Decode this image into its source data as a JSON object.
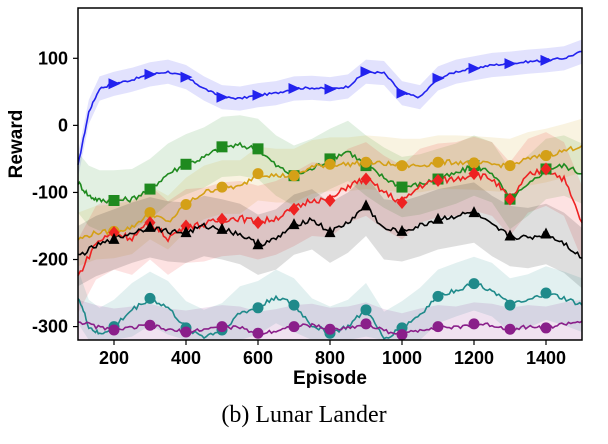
{
  "caption": "(b) Lunar Lander",
  "chart_data": {
    "type": "line",
    "title": "",
    "xlabel": "Episode",
    "ylabel": "Reward",
    "xlim": [
      100,
      1500
    ],
    "ylim": [
      -320,
      175
    ],
    "xticks": [
      200,
      400,
      600,
      800,
      1000,
      1200,
      1400
    ],
    "yticks": [
      100,
      0,
      -100,
      -200,
      -300
    ],
    "grid": false,
    "series": [
      {
        "color": "#2222ee",
        "marker": "triangle-right",
        "x": [
          100,
          130,
          160,
          200,
          250,
          300,
          350,
          400,
          450,
          500,
          550,
          600,
          650,
          700,
          750,
          800,
          850,
          900,
          950,
          1000,
          1050,
          1100,
          1150,
          1200,
          1250,
          1300,
          1350,
          1400,
          1450,
          1500
        ],
        "y": [
          -60,
          20,
          55,
          62,
          68,
          76,
          80,
          72,
          55,
          42,
          40,
          45,
          48,
          55,
          56,
          54,
          58,
          80,
          78,
          48,
          42,
          70,
          80,
          85,
          90,
          92,
          95,
          97,
          100,
          110
        ],
        "band": 18
      },
      {
        "color": "#1f8a1f",
        "marker": "square",
        "x": [
          100,
          130,
          160,
          200,
          250,
          300,
          350,
          400,
          450,
          500,
          550,
          600,
          650,
          700,
          750,
          800,
          850,
          900,
          950,
          1000,
          1050,
          1100,
          1150,
          1200,
          1250,
          1300,
          1350,
          1400,
          1450,
          1500
        ],
        "y": [
          -85,
          -105,
          -112,
          -112,
          -110,
          -95,
          -72,
          -58,
          -48,
          -32,
          -30,
          -35,
          -60,
          -75,
          -65,
          -50,
          -38,
          -60,
          -78,
          -92,
          -88,
          -80,
          -72,
          -60,
          -70,
          -110,
          -90,
          -65,
          -60,
          -72
        ],
        "band": 45
      },
      {
        "color": "#d4a017",
        "marker": "circle",
        "x": [
          100,
          150,
          200,
          250,
          300,
          350,
          400,
          450,
          500,
          550,
          600,
          650,
          700,
          750,
          800,
          850,
          900,
          950,
          1000,
          1050,
          1100,
          1150,
          1200,
          1250,
          1300,
          1350,
          1400,
          1450,
          1500
        ],
        "y": [
          -170,
          -160,
          -158,
          -152,
          -130,
          -145,
          -118,
          -100,
          -92,
          -92,
          -72,
          -75,
          -75,
          -62,
          -58,
          -58,
          -55,
          -57,
          -60,
          -60,
          -55,
          -55,
          -56,
          -58,
          -60,
          -50,
          -45,
          -38,
          -30
        ],
        "band": 40
      },
      {
        "color": "#ee2222",
        "marker": "diamond",
        "x": [
          100,
          150,
          200,
          250,
          300,
          350,
          400,
          450,
          500,
          550,
          600,
          650,
          700,
          750,
          800,
          850,
          900,
          950,
          1000,
          1050,
          1100,
          1150,
          1200,
          1250,
          1300,
          1350,
          1400,
          1450,
          1500
        ],
        "y": [
          -225,
          -175,
          -160,
          -168,
          -145,
          -168,
          -150,
          -148,
          -140,
          -138,
          -145,
          -138,
          -125,
          -110,
          -112,
          -90,
          -80,
          -100,
          -115,
          -90,
          -82,
          -80,
          -72,
          -80,
          -110,
          -75,
          -65,
          -80,
          -145
        ],
        "band": 55
      },
      {
        "color": "#000000",
        "marker": "triangle-up",
        "x": [
          100,
          150,
          200,
          250,
          300,
          350,
          400,
          450,
          500,
          550,
          600,
          650,
          700,
          750,
          800,
          850,
          900,
          950,
          1000,
          1050,
          1100,
          1150,
          1200,
          1250,
          1300,
          1350,
          1400,
          1450,
          1500
        ],
        "y": [
          -195,
          -180,
          -170,
          -160,
          -152,
          -158,
          -160,
          -150,
          -155,
          -162,
          -178,
          -170,
          -148,
          -140,
          -160,
          -145,
          -120,
          -155,
          -158,
          -150,
          -140,
          -135,
          -130,
          -150,
          -165,
          -168,
          -162,
          -175,
          -198
        ],
        "band": 45
      },
      {
        "color": "#1f8a8a",
        "marker": "circle",
        "x": [
          100,
          130,
          160,
          200,
          250,
          300,
          350,
          400,
          450,
          500,
          550,
          600,
          650,
          700,
          750,
          800,
          850,
          900,
          950,
          1000,
          1050,
          1100,
          1150,
          1200,
          1250,
          1300,
          1350,
          1400,
          1450,
          1500
        ],
        "y": [
          -255,
          -300,
          -312,
          -300,
          -275,
          -258,
          -272,
          -302,
          -315,
          -305,
          -280,
          -272,
          -255,
          -268,
          -298,
          -310,
          -300,
          -275,
          -318,
          -302,
          -282,
          -255,
          -245,
          -236,
          -245,
          -268,
          -262,
          -250,
          -258,
          -268
        ],
        "band": 40
      },
      {
        "color": "#8a1f8a",
        "marker": "circle",
        "x": [
          100,
          150,
          200,
          250,
          300,
          350,
          400,
          450,
          500,
          550,
          600,
          650,
          700,
          750,
          800,
          850,
          900,
          950,
          1000,
          1050,
          1100,
          1150,
          1200,
          1250,
          1300,
          1350,
          1400,
          1450,
          1500
        ],
        "y": [
          -292,
          -300,
          -305,
          -302,
          -298,
          -305,
          -308,
          -304,
          -300,
          -302,
          -310,
          -306,
          -300,
          -298,
          -304,
          -302,
          -296,
          -306,
          -312,
          -305,
          -300,
          -302,
          -296,
          -298,
          -304,
          -300,
          -302,
          -296,
          -292
        ],
        "band": 32
      }
    ]
  }
}
